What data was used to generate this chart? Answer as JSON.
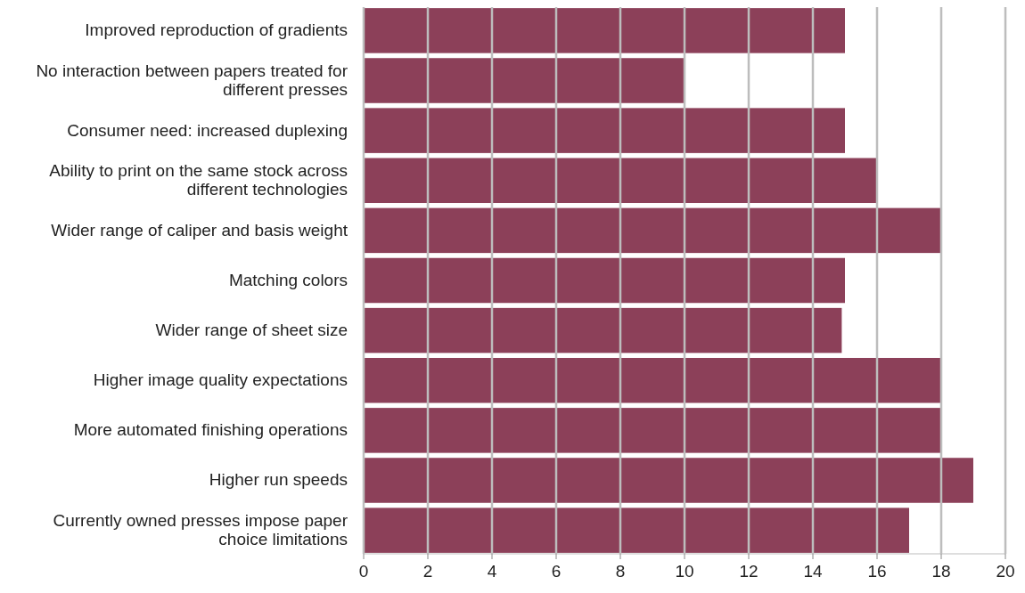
{
  "chart_data": {
    "type": "bar",
    "orientation": "horizontal",
    "categories": [
      "Improved reproduction of gradients",
      "No interaction between papers treated for different presses",
      "Consumer need: increased duplexing",
      "Ability to print on the same stock across different technologies",
      "Wider range of caliper and basis weight",
      "Matching colors",
      "Wider range of sheet size",
      "Higher image quality expectations",
      "More automated finishing operations",
      "Higher run speeds",
      "Currently owned presses impose paper choice limitations"
    ],
    "values": [
      15,
      10,
      15,
      16,
      18,
      15,
      14.9,
      18,
      18,
      19,
      17
    ],
    "color": "#8c4059",
    "xlim": [
      0,
      20
    ],
    "xticks": [
      0,
      2,
      4,
      6,
      8,
      10,
      12,
      14,
      16,
      18,
      20
    ],
    "grid": "x"
  }
}
